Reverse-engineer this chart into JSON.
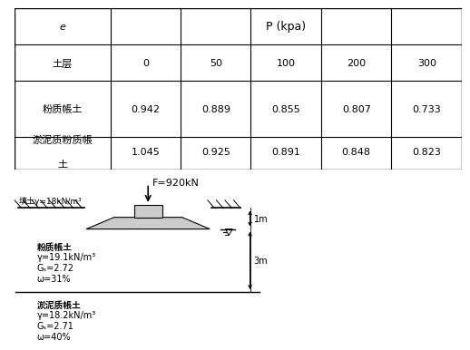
{
  "table": {
    "header_row1_col0": "e",
    "header_row1_col1": "P (kpa)",
    "header_row2": [
      "土层",
      "0",
      "50",
      "100",
      "200",
      "300"
    ],
    "row1": [
      "粉质帳土",
      "0.942",
      "0.889",
      "0.855",
      "0.807",
      "0.733"
    ],
    "row2_col0_line1": "淤泥质粉质帳",
    "row2_col0_line2": "土",
    "row2_vals": [
      "1.045",
      "0.925",
      "0.891",
      "0.848",
      "0.823"
    ]
  },
  "diagram": {
    "F_label": "F=920kN",
    "fill_label": "填土γ=18kN/m³",
    "layer1_line1": "粉质帳土",
    "layer1_line2": "γ=19.1kN/m³",
    "layer1_line3": "Gₛ=2.72",
    "layer1_line4": "ω=31%",
    "layer2_line1": "淤泥质帳土",
    "layer2_line2": "γ=18.2kN/m³",
    "layer2_line3": "Gₛ=2.71",
    "layer2_line4": "ω=40%",
    "dim1": "1m",
    "dim2": "3m"
  },
  "bg_color": "#ffffff",
  "line_color": "#000000",
  "text_color": "#000000",
  "fs_table": 8,
  "fs_diagram": 7
}
